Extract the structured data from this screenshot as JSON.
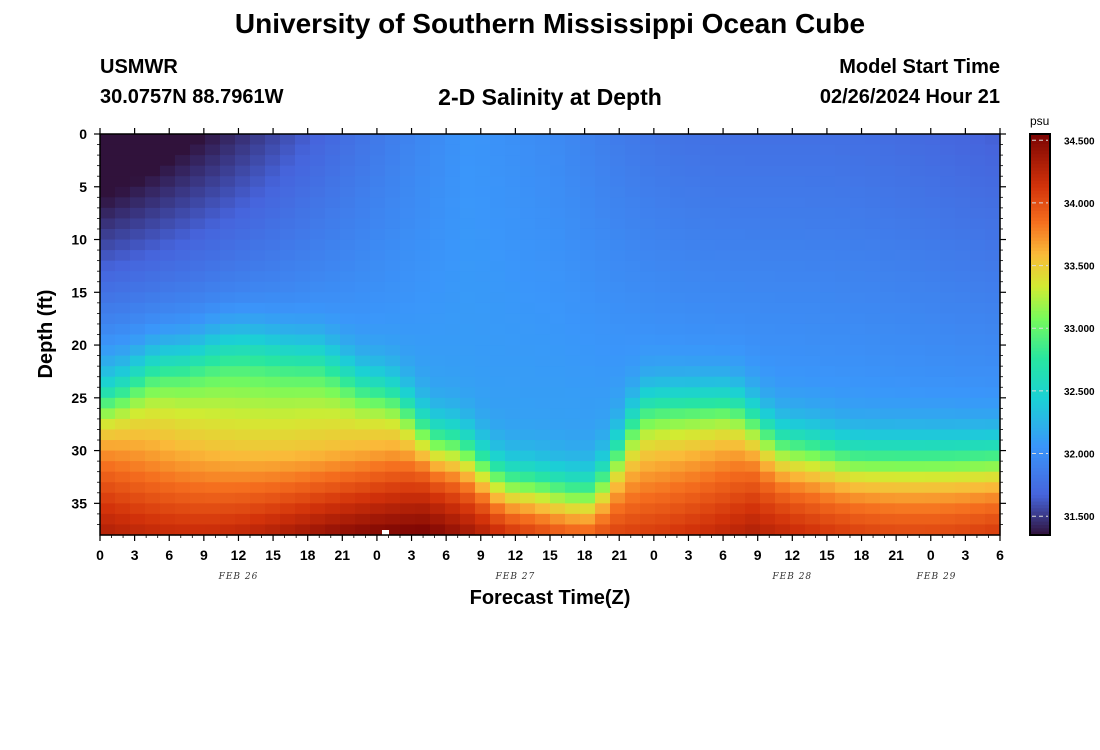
{
  "header": {
    "title": "University of Southern Mississippi Ocean Cube",
    "station": "USMWR",
    "coords": "30.0757N  88.7961W",
    "chart_title": "2-D Salinity at Depth",
    "model_label": "Model Start Time",
    "model_time": "02/26/2024 Hour 21"
  },
  "footer": {
    "title": "University of Southern Mississippi Ocean Cube"
  },
  "chart_data": {
    "type": "heatmap",
    "title": "2-D Salinity at Depth",
    "xlabel": "Forecast Time(Z)",
    "ylabel": "Depth (ft)",
    "x_hours_range": [
      0,
      78
    ],
    "x_ticks": [
      "0",
      "3",
      "6",
      "9",
      "12",
      "15",
      "18",
      "21",
      "0",
      "3",
      "6",
      "9",
      "12",
      "15",
      "18",
      "21",
      "0",
      "3",
      "6",
      "9",
      "12",
      "15",
      "18",
      "21",
      "0",
      "3",
      "6"
    ],
    "x_day_labels": [
      "FEB 26",
      "FEB 27",
      "FEB 28",
      "FEB 29"
    ],
    "ylim": [
      0,
      38
    ],
    "y_ticks": [
      0,
      5,
      10,
      15,
      20,
      25,
      30,
      35
    ],
    "colorbar": {
      "unit": "psu",
      "range": [
        31.35,
        34.55
      ],
      "ticks": [
        "34.500",
        "34.000",
        "33.500",
        "33.000",
        "32.500",
        "32.000",
        "31.500"
      ]
    },
    "halocline_depth_ft": {
      "hours": [
        0,
        6,
        12,
        18,
        24,
        30,
        36,
        42,
        48,
        54,
        60,
        66,
        72,
        78
      ],
      "depth": [
        25,
        21.5,
        19.5,
        20.5,
        24,
        29,
        33,
        34,
        25.5,
        25.5,
        29.5,
        30.5,
        30.5,
        30.5
      ]
    },
    "salinity_psu": {
      "surface_fresh": 31.45,
      "mid_layer": 32.1,
      "bottom_max": 34.3
    }
  }
}
